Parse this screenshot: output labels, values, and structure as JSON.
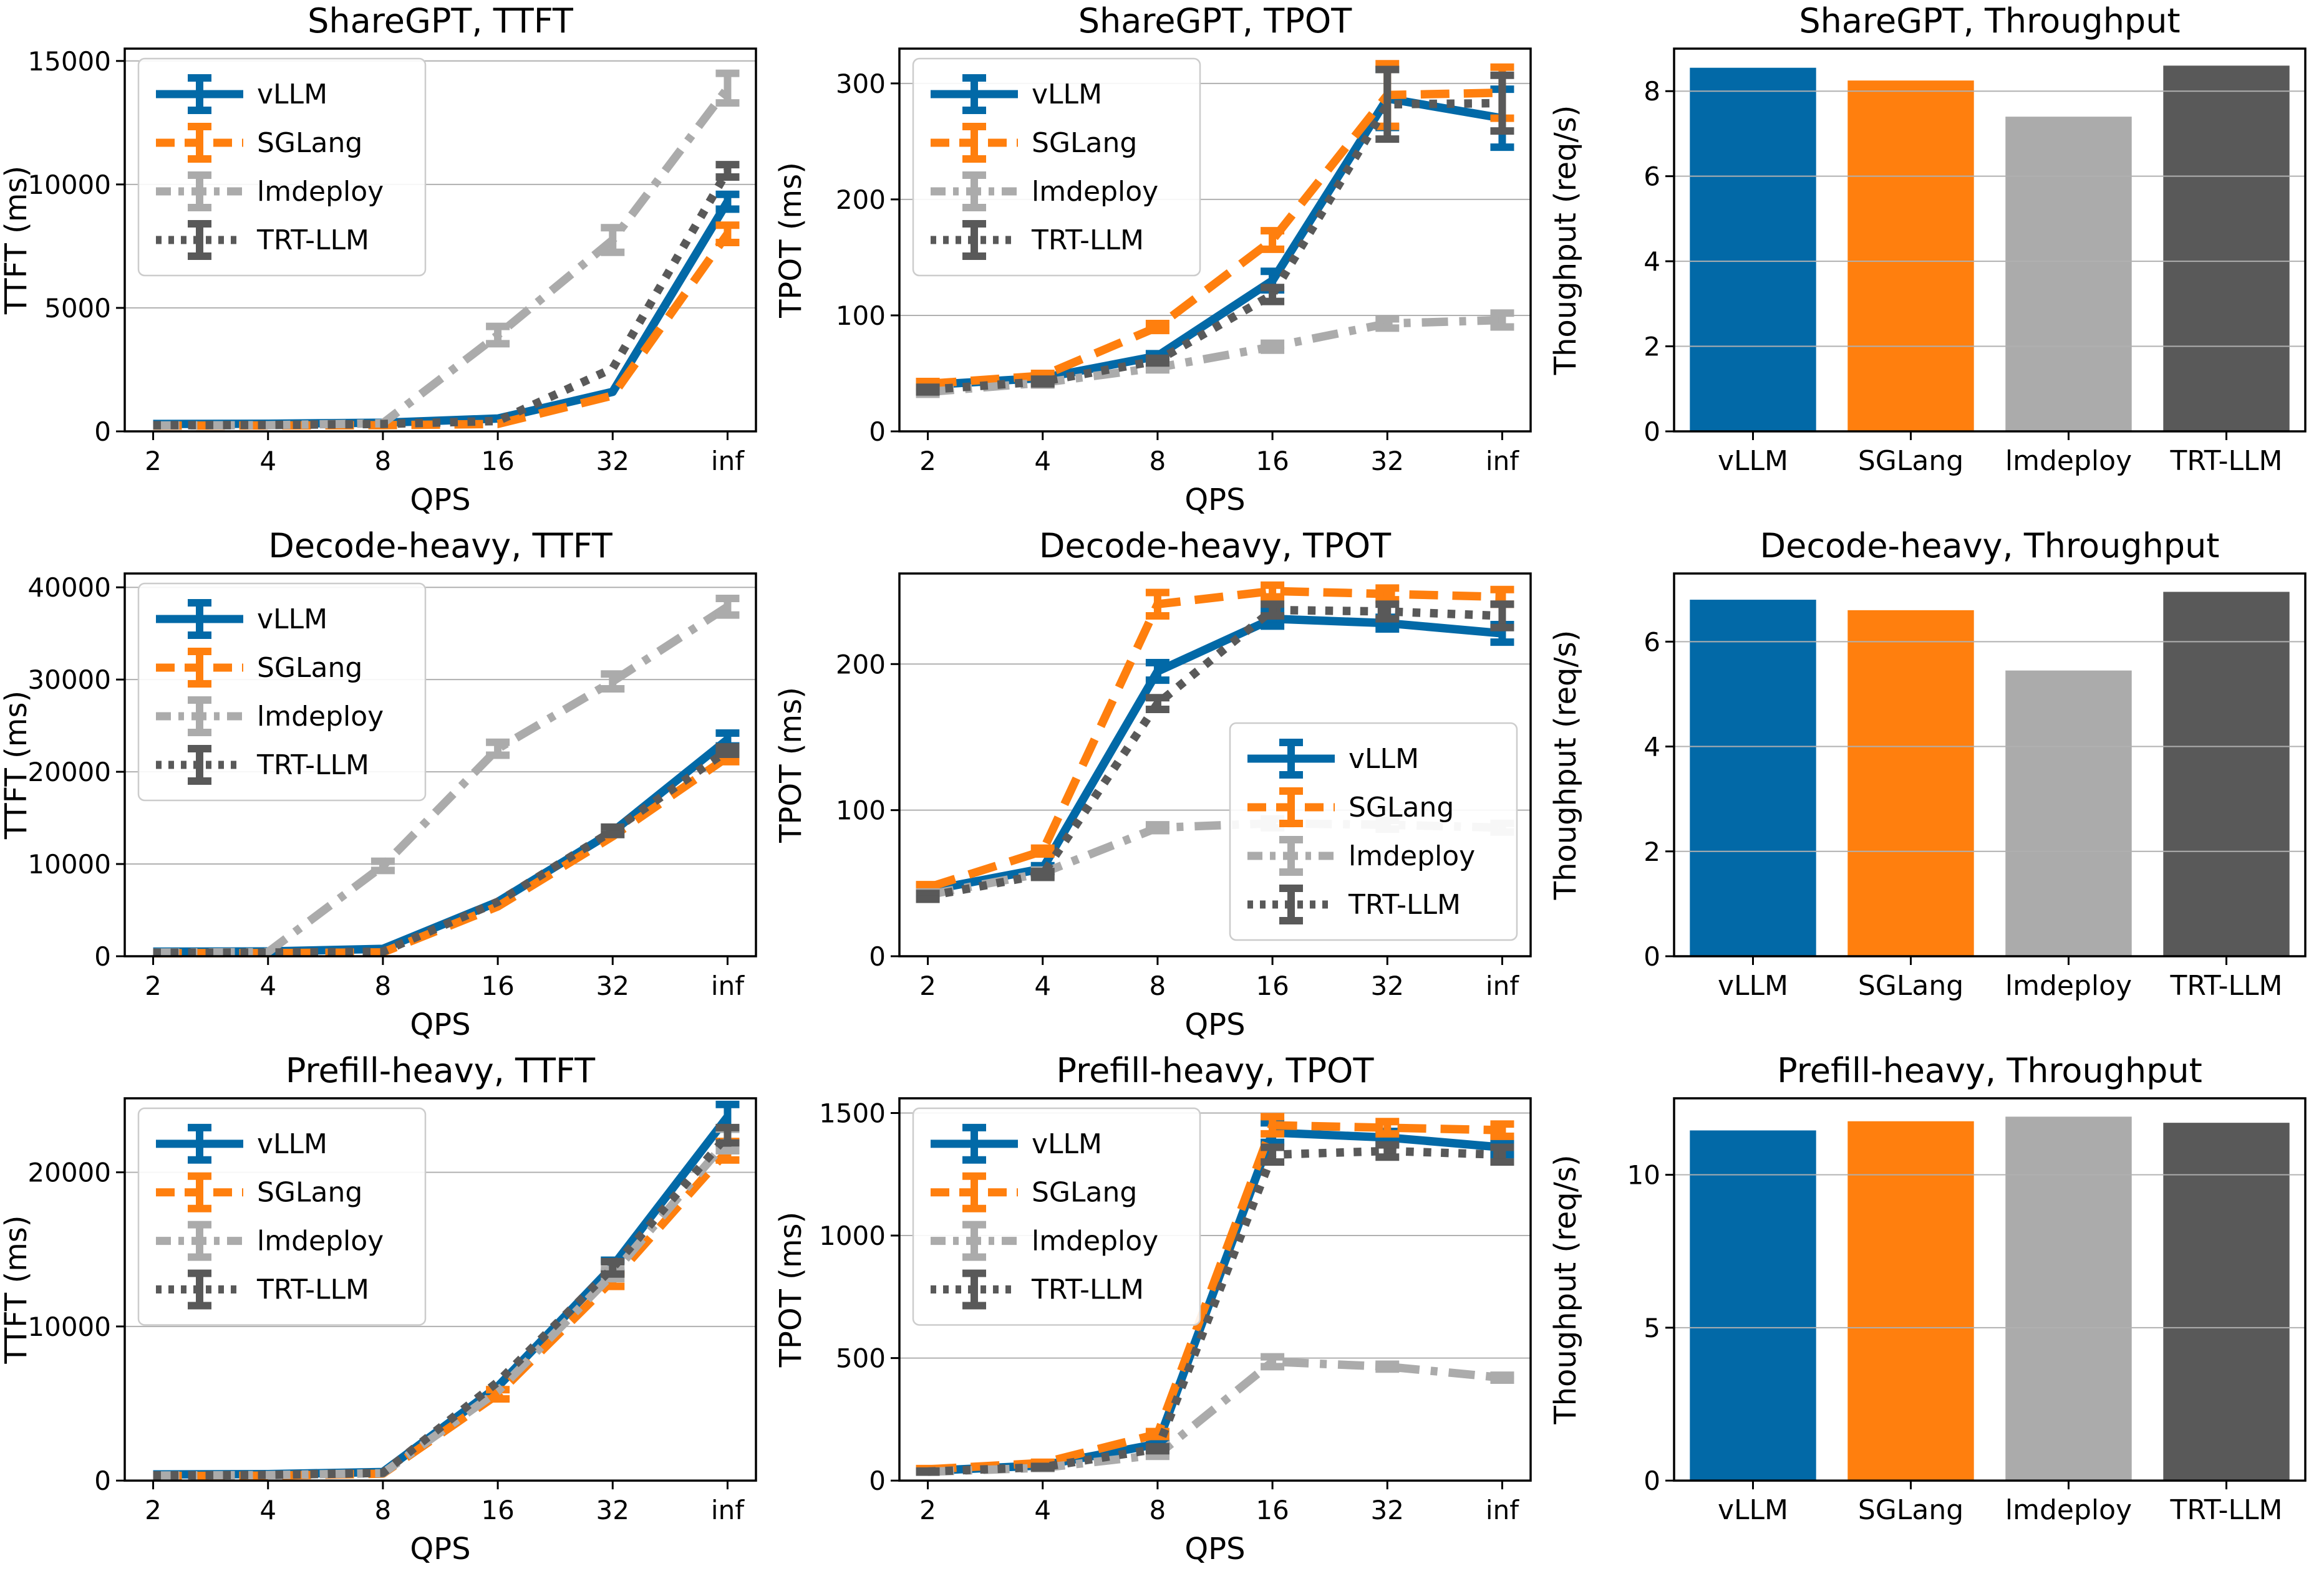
{
  "figure": {
    "background": "#ffffff",
    "grid_color": "#b0b0b0",
    "spine_color": "#000000",
    "legend_border_color": "#cccccc"
  },
  "palette": {
    "vLLM": "#0269a7",
    "SGLang": "#ff7f0e",
    "lmdeploy": "#ababab",
    "TRT-LLM": "#595959"
  },
  "frameworks": [
    "vLLM",
    "SGLang",
    "lmdeploy",
    "TRT-LLM"
  ],
  "chart_data": [
    {
      "type": "line",
      "title": "ShareGPT, TTFT",
      "xlabel": "QPS",
      "ylabel": "TTFT (ms)",
      "x_ticklabels": [
        "2",
        "4",
        "8",
        "16",
        "32",
        "inf"
      ],
      "yticks": [
        0,
        5000,
        10000,
        15000
      ],
      "ylim": [
        0,
        15500
      ],
      "legend": "upper-left",
      "series": [
        {
          "name": "vLLM",
          "color": "#0269a7",
          "dash": "solid",
          "values": [
            300,
            310,
            350,
            520,
            1600,
            9300
          ],
          "err": [
            0,
            0,
            0,
            0,
            0,
            300
          ]
        },
        {
          "name": "SGLang",
          "color": "#ff7f0e",
          "dash": "dashed",
          "values": [
            230,
            240,
            250,
            300,
            1450,
            8000
          ],
          "err": [
            0,
            0,
            0,
            0,
            0,
            350
          ]
        },
        {
          "name": "lmdeploy",
          "color": "#ababab",
          "dash": "dashdot",
          "values": [
            240,
            250,
            330,
            3900,
            7750,
            13900
          ],
          "err": [
            0,
            0,
            0,
            350,
            500,
            600
          ]
        },
        {
          "name": "TRT-LLM",
          "color": "#595959",
          "dash": "dotted",
          "values": [
            250,
            260,
            300,
            420,
            2550,
            10550
          ],
          "err": [
            0,
            0,
            0,
            0,
            0,
            250
          ]
        }
      ]
    },
    {
      "type": "line",
      "title": "ShareGPT, TPOT",
      "xlabel": "QPS",
      "ylabel": "TPOT (ms)",
      "x_ticklabels": [
        "2",
        "4",
        "8",
        "16",
        "32",
        "inf"
      ],
      "yticks": [
        0,
        100,
        200,
        300
      ],
      "ylim": [
        0,
        330
      ],
      "legend": "upper-left",
      "series": [
        {
          "name": "vLLM",
          "color": "#0269a7",
          "dash": "solid",
          "values": [
            40,
            46,
            65,
            130,
            287,
            270
          ],
          "err": [
            3,
            2,
            2,
            8,
            25,
            25
          ]
        },
        {
          "name": "SGLang",
          "color": "#ff7f0e",
          "dash": "dashed",
          "values": [
            41,
            48,
            90,
            165,
            290,
            292
          ],
          "err": [
            2,
            2,
            3,
            8,
            27,
            22
          ]
        },
        {
          "name": "lmdeploy",
          "color": "#ababab",
          "dash": "dashdot",
          "values": [
            34,
            42,
            55,
            73,
            93,
            96
          ],
          "err": [
            2,
            2,
            2,
            3,
            4,
            6
          ]
        },
        {
          "name": "TRT-LLM",
          "color": "#595959",
          "dash": "dotted",
          "values": [
            36,
            43,
            61,
            118,
            282,
            283
          ],
          "err": [
            2,
            2,
            2,
            6,
            30,
            24
          ]
        }
      ]
    },
    {
      "type": "bar",
      "title": "ShareGPT, Throughput",
      "ylabel": "Thoughput (req/s)",
      "categories": [
        "vLLM",
        "SGLang",
        "lmdeploy",
        "TRT-LLM"
      ],
      "values": [
        8.55,
        8.25,
        7.4,
        8.6
      ],
      "colors": [
        "#0269a7",
        "#ff7f0e",
        "#ababab",
        "#595959"
      ],
      "yticks": [
        0,
        2,
        4,
        6,
        8
      ],
      "ylim": [
        0,
        9.0
      ]
    },
    {
      "type": "line",
      "title": "Decode-heavy, TTFT",
      "xlabel": "QPS",
      "ylabel": "TTFT (ms)",
      "x_ticklabels": [
        "2",
        "4",
        "8",
        "16",
        "32",
        "inf"
      ],
      "yticks": [
        0,
        10000,
        20000,
        30000,
        40000
      ],
      "ylim": [
        0,
        41500
      ],
      "legend": "upper-left",
      "series": [
        {
          "name": "vLLM",
          "color": "#0269a7",
          "dash": "solid",
          "values": [
            500,
            520,
            800,
            5900,
            13500,
            23500
          ],
          "err": [
            0,
            0,
            0,
            0,
            0,
            700
          ]
        },
        {
          "name": "SGLang",
          "color": "#ff7f0e",
          "dash": "dashed",
          "values": [
            330,
            340,
            420,
            5400,
            13000,
            21600
          ],
          "err": [
            0,
            0,
            0,
            0,
            0,
            500
          ]
        },
        {
          "name": "lmdeploy",
          "color": "#ababab",
          "dash": "dashdot",
          "values": [
            400,
            450,
            9800,
            22500,
            29800,
            37900
          ],
          "err": [
            0,
            0,
            500,
            700,
            800,
            900
          ]
        },
        {
          "name": "TRT-LLM",
          "color": "#595959",
          "dash": "dotted",
          "values": [
            380,
            400,
            500,
            5900,
            13600,
            22300
          ],
          "err": [
            0,
            0,
            0,
            0,
            400,
            400
          ]
        }
      ]
    },
    {
      "type": "line",
      "title": "Decode-heavy, TPOT",
      "xlabel": "QPS",
      "ylabel": "TPOT (ms)",
      "x_ticklabels": [
        "2",
        "4",
        "8",
        "16",
        "32",
        "inf"
      ],
      "yticks": [
        0,
        100,
        200
      ],
      "ylim": [
        0,
        262
      ],
      "legend": "lower-right",
      "series": [
        {
          "name": "vLLM",
          "color": "#0269a7",
          "dash": "solid",
          "values": [
            45,
            60,
            195,
            231,
            228,
            221
          ],
          "err": [
            3,
            2,
            6,
            5,
            4,
            6
          ]
        },
        {
          "name": "SGLang",
          "color": "#ff7f0e",
          "dash": "dashed",
          "values": [
            47,
            72,
            241,
            250,
            248,
            246
          ],
          "err": [
            2,
            2,
            8,
            4,
            4,
            5
          ]
        },
        {
          "name": "lmdeploy",
          "color": "#ababab",
          "dash": "dashdot",
          "values": [
            42,
            57,
            88,
            91,
            90,
            88
          ],
          "err": [
            2,
            2,
            2,
            3,
            3,
            3
          ]
        },
        {
          "name": "TRT-LLM",
          "color": "#595959",
          "dash": "dotted",
          "values": [
            41,
            56,
            173,
            237,
            236,
            233
          ],
          "err": [
            2,
            2,
            4,
            4,
            5,
            8
          ]
        }
      ]
    },
    {
      "type": "bar",
      "title": "Decode-heavy, Throughput",
      "ylabel": "Thoughput (req/s)",
      "categories": [
        "vLLM",
        "SGLang",
        "lmdeploy",
        "TRT-LLM"
      ],
      "values": [
        6.8,
        6.6,
        5.45,
        6.95
      ],
      "colors": [
        "#0269a7",
        "#ff7f0e",
        "#ababab",
        "#595959"
      ],
      "yticks": [
        0,
        2,
        4,
        6
      ],
      "ylim": [
        0,
        7.3
      ]
    },
    {
      "type": "line",
      "title": "Prefill-heavy, TTFT",
      "xlabel": "QPS",
      "ylabel": "TTFT (ms)",
      "x_ticklabels": [
        "2",
        "4",
        "8",
        "16",
        "32",
        "inf"
      ],
      "yticks": [
        0,
        10000,
        20000
      ],
      "ylim": [
        0,
        24800
      ],
      "legend": "upper-left",
      "series": [
        {
          "name": "vLLM",
          "color": "#0269a7",
          "dash": "solid",
          "values": [
            400,
            420,
            560,
            6100,
            13900,
            23600
          ],
          "err": [
            0,
            0,
            0,
            0,
            400,
            800
          ]
        },
        {
          "name": "SGLang",
          "color": "#ff7f0e",
          "dash": "dashed",
          "values": [
            300,
            320,
            450,
            5600,
            13000,
            21400
          ],
          "err": [
            0,
            0,
            0,
            300,
            400,
            600
          ]
        },
        {
          "name": "lmdeploy",
          "color": "#ababab",
          "dash": "dashdot",
          "values": [
            330,
            360,
            480,
            5800,
            13400,
            22100
          ],
          "err": [
            0,
            0,
            0,
            0,
            300,
            700
          ]
        },
        {
          "name": "TRT-LLM",
          "color": "#595959",
          "dash": "dotted",
          "values": [
            340,
            370,
            500,
            6400,
            13800,
            22400
          ],
          "err": [
            0,
            0,
            0,
            0,
            400,
            500
          ]
        }
      ]
    },
    {
      "type": "line",
      "title": "Prefill-heavy, TPOT",
      "xlabel": "QPS",
      "ylabel": "TPOT (ms)",
      "x_ticklabels": [
        "2",
        "4",
        "8",
        "16",
        "32",
        "inf"
      ],
      "yticks": [
        0,
        500,
        1000,
        1500
      ],
      "ylim": [
        0,
        1560
      ],
      "legend": "upper-left",
      "series": [
        {
          "name": "vLLM",
          "color": "#0269a7",
          "dash": "solid",
          "values": [
            40,
            62,
            150,
            1420,
            1400,
            1360
          ],
          "err": [
            3,
            3,
            8,
            40,
            25,
            30
          ]
        },
        {
          "name": "SGLang",
          "color": "#ff7f0e",
          "dash": "dashed",
          "values": [
            46,
            72,
            190,
            1450,
            1440,
            1430
          ],
          "err": [
            3,
            3,
            10,
            35,
            25,
            25
          ]
        },
        {
          "name": "lmdeploy",
          "color": "#ababab",
          "dash": "dashdot",
          "values": [
            36,
            52,
            105,
            485,
            465,
            420
          ],
          "err": [
            2,
            3,
            6,
            20,
            10,
            10
          ]
        },
        {
          "name": "TRT-LLM",
          "color": "#595959",
          "dash": "dotted",
          "values": [
            37,
            55,
            130,
            1330,
            1345,
            1330
          ],
          "err": [
            2,
            3,
            8,
            30,
            25,
            30
          ]
        }
      ]
    },
    {
      "type": "bar",
      "title": "Prefill-heavy, Throughput",
      "ylabel": "Thoughput (req/s)",
      "categories": [
        "vLLM",
        "SGLang",
        "lmdeploy",
        "TRT-LLM"
      ],
      "values": [
        11.45,
        11.75,
        11.9,
        11.7
      ],
      "colors": [
        "#0269a7",
        "#ff7f0e",
        "#ababab",
        "#595959"
      ],
      "yticks": [
        0,
        5,
        10
      ],
      "ylim": [
        0,
        12.5
      ]
    }
  ]
}
